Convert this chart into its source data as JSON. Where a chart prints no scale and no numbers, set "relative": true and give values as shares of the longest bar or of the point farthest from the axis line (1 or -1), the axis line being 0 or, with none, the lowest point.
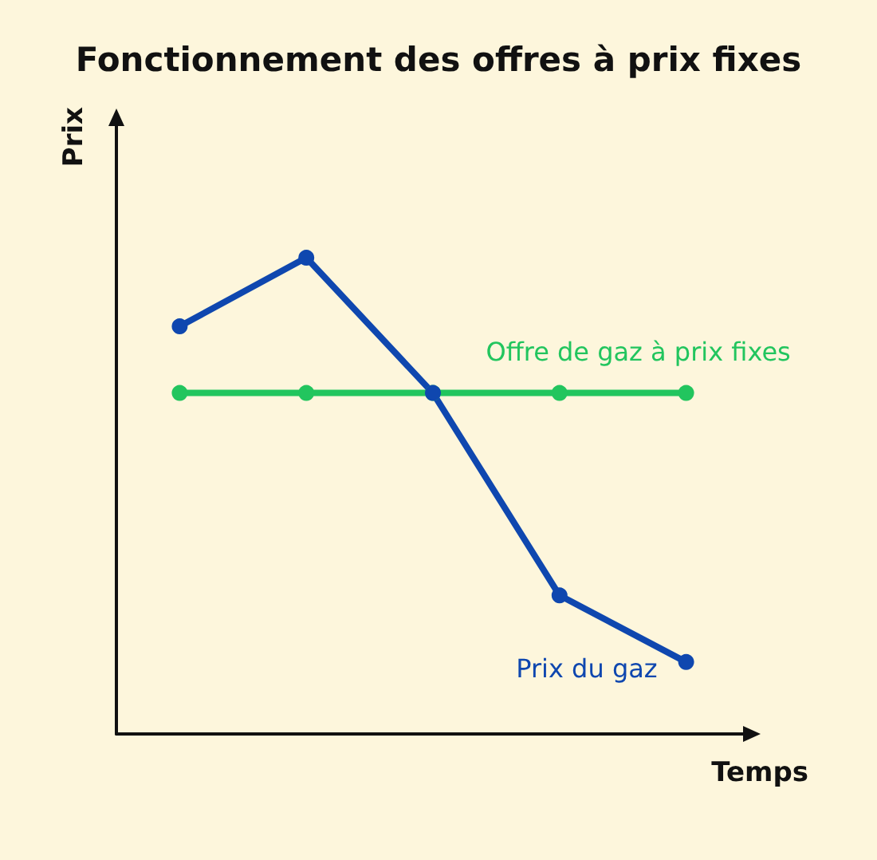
{
  "chart_data": {
    "type": "line",
    "title": "Fonctionnement des offres à prix fixes",
    "xlabel": "Temps",
    "ylabel": "Prix",
    "relative": true,
    "categories": [
      null,
      null,
      null,
      null,
      null
    ],
    "series": [
      {
        "name": "Offre de gaz à prix fixes",
        "color": "#22c55e",
        "values": [
          0.716,
          0.716,
          0.716,
          0.716,
          0.716
        ]
      },
      {
        "name": "Prix du gaz",
        "color": "#0f47af",
        "values": [
          0.856,
          1,
          0.716,
          0.291,
          0.151
        ]
      }
    ],
    "marker": "circle",
    "line_style": "solid",
    "grid": false
  }
}
